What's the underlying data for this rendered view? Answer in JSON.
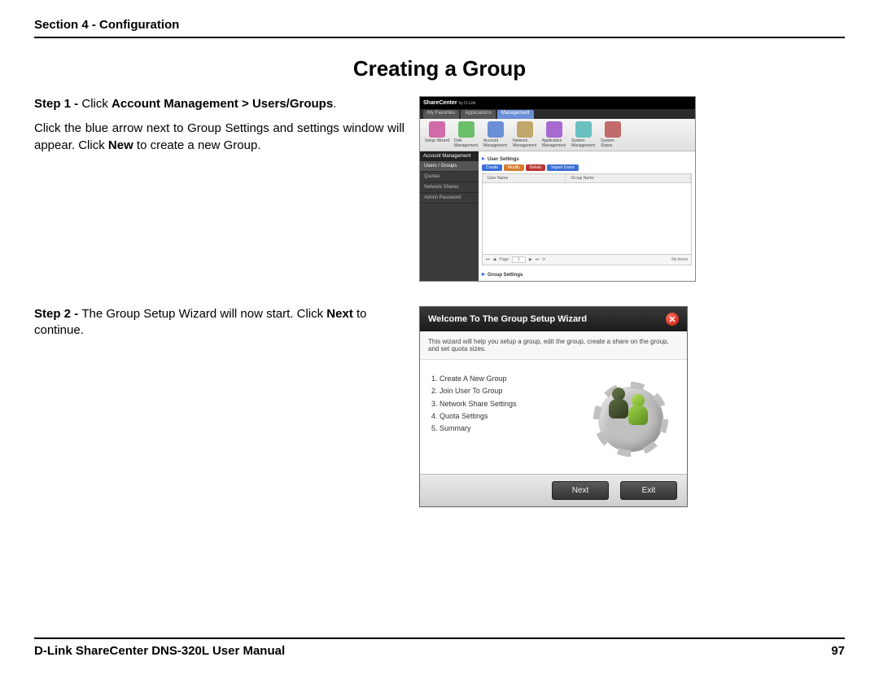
{
  "header": {
    "section": "Section 4 - Configuration"
  },
  "title": "Creating a Group",
  "step1": {
    "label": "Step 1 - ",
    "action_prefix": "Click ",
    "breadcrumb": "Account Management > Users/Groups",
    "period": ".",
    "body_a": "Click the blue arrow next to Group Settings and settings window will appear. Click ",
    "body_bold": "New",
    "body_b": " to create a new Group."
  },
  "step2": {
    "label": "Step 2 - ",
    "body_a": "The Group Setup Wizard will now start. Click ",
    "body_bold": "Next",
    "body_b": " to continue."
  },
  "screenshot1": {
    "brand": "ShareCenter",
    "brand_sub": "by D-Link",
    "tabs": [
      "My Favorites",
      "Applications",
      "Management"
    ],
    "toolbar": [
      "Setup Wizard",
      "Disk Management",
      "Account Management",
      "Network Management",
      "Application Management",
      "System Management",
      "System Status"
    ],
    "toolbar_colors": [
      "#d06aa8",
      "#6ac06a",
      "#6a8fd6",
      "#c0a86a",
      "#a86ad0",
      "#6ac0c0",
      "#c06a6a"
    ],
    "side_head": "Account Management",
    "side_items": [
      "Users / Groups",
      "Quotas",
      "Network Shares",
      "Admin Password"
    ],
    "usersettings": "User Settings",
    "buttons": [
      "Create",
      "Modify",
      "Delete",
      "Import Users"
    ],
    "grid_cols": [
      "User Name",
      "Group Name"
    ],
    "pager_page": "Page",
    "pager_items": "No items",
    "groupsettings": "Group Settings"
  },
  "wizard": {
    "title": "Welcome To The Group Setup Wizard",
    "desc": "This wizard will help you setup a group, edit the group, create a share on the group, and set quota sizes.",
    "steps": [
      "1. Create A New Group",
      "2. Join User To Group",
      "3. Network Share Settings",
      "4. Quota Settings",
      "5. Summary"
    ],
    "next": "Next",
    "exit": "Exit"
  },
  "footer": {
    "manual": "D-Link ShareCenter DNS-320L User Manual",
    "page": "97"
  },
  "colors": {
    "accent_blue": "#3a6fd6"
  }
}
